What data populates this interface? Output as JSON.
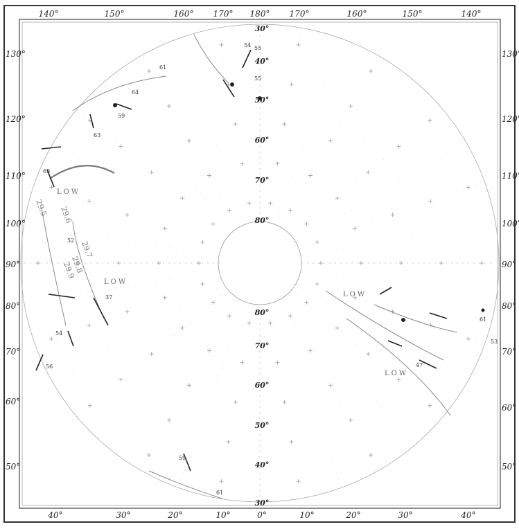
{
  "map": {
    "top_longitudes": [
      "140°",
      "150°",
      "160°",
      "170°",
      "180°",
      "170°",
      "160°",
      "150°",
      "140°"
    ],
    "bottom_longitudes": [
      "40°",
      "30°",
      "20°",
      "10°",
      "0°",
      "10°",
      "20°",
      "30°",
      "40°"
    ],
    "left_longitudes": [
      "130°",
      "120°",
      "110°",
      "100°",
      "90°",
      "80°",
      "70°",
      "60°",
      "50°"
    ],
    "right_longitudes": [
      "130°",
      "120°",
      "110°",
      "100°",
      "90°",
      "80°",
      "70°",
      "60°",
      "50°"
    ],
    "upper_latitudes": [
      "30°",
      "40°",
      "50°",
      "60°",
      "70°",
      "80°"
    ],
    "lower_latitudes": [
      "80°",
      "70°",
      "60°",
      "50°",
      "40°",
      "30°"
    ],
    "low_pressure_labels": [
      "LOW",
      "LOW",
      "LOW",
      "LOW"
    ],
    "isobar_labels": [
      "29.5",
      "29.6",
      "29.7",
      "29.8",
      "29.9"
    ],
    "station_labels": [
      "55",
      "54",
      "55",
      "61",
      "64",
      "59",
      "63",
      "63",
      "52",
      "37",
      "54",
      "56",
      "61",
      "53",
      "47",
      "59",
      "61"
    ]
  }
}
